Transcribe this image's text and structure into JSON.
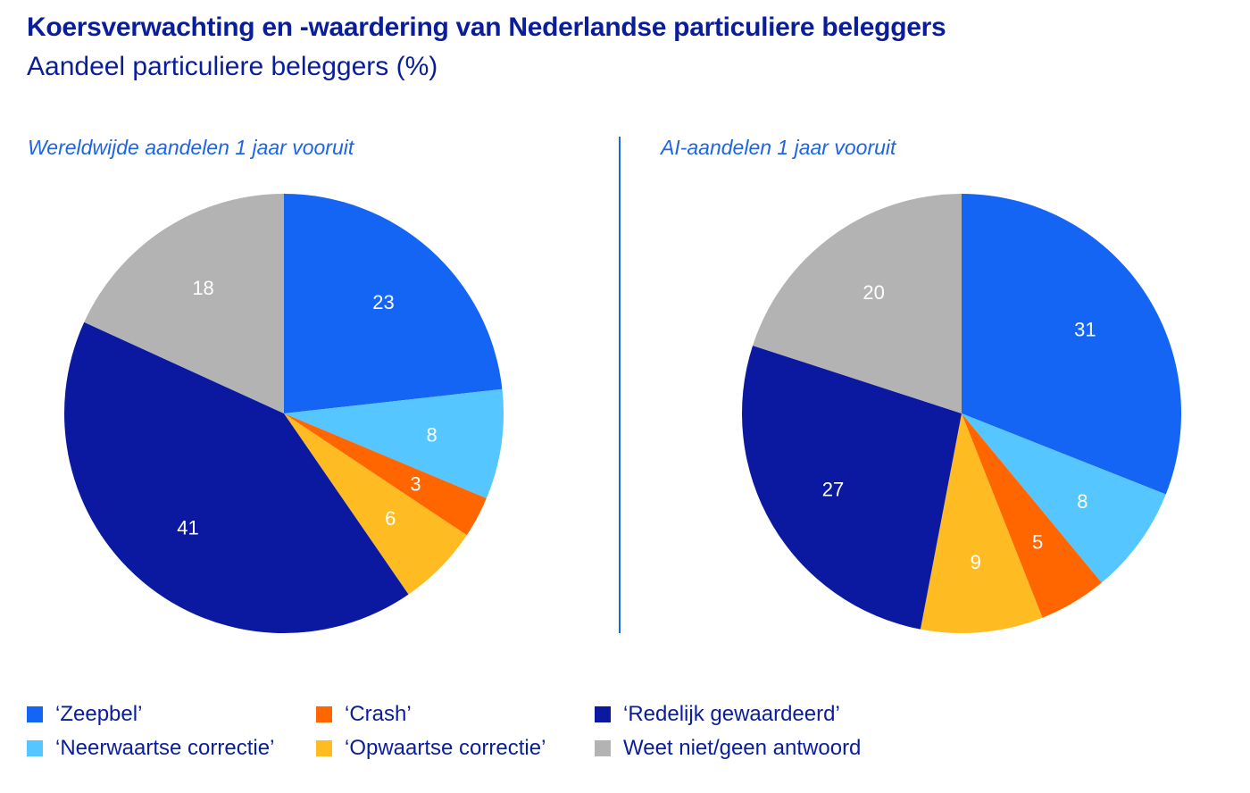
{
  "title": "Koersverwachting en -waardering van Nederlandse particuliere beleggers",
  "subtitle": "Aandeel particuliere beleggers (%)",
  "legend": [
    {
      "label": "‘Zeepbel’",
      "color": "#1565f5"
    },
    {
      "label": "‘Crash’",
      "color": "#ff6600"
    },
    {
      "label": "‘Redelijk gewaardeerd’",
      "color": "#0a19a0"
    },
    {
      "label": "‘Neerwaartse correctie’",
      "color": "#55c6ff"
    },
    {
      "label": "‘Opwaartse correctie’",
      "color": "#ffbb22"
    },
    {
      "label": "Weet niet/geen antwoord",
      "color": "#b3b3b3"
    }
  ],
  "chart_data": [
    {
      "type": "pie",
      "title": "Wereldwijde aandelen 1 jaar vooruit",
      "categories": [
        "‘Zeepbel’",
        "‘Neerwaartse correctie’",
        "‘Crash’",
        "‘Opwaartse correctie’",
        "‘Redelijk gewaardeerd’",
        "Weet niet/geen antwoord"
      ],
      "values": [
        23,
        8,
        3,
        6,
        41,
        18
      ],
      "labels": [
        "23",
        "8",
        "3",
        "6",
        "41",
        "18"
      ],
      "colors": [
        "#1565f5",
        "#55c6ff",
        "#ff6600",
        "#ffbb22",
        "#0a19a0",
        "#b3b3b3"
      ]
    },
    {
      "type": "pie",
      "title": "AI-aandelen 1 jaar vooruit",
      "categories": [
        "‘Zeepbel’",
        "‘Neerwaartse correctie’",
        "‘Crash’",
        "‘Opwaartse correctie’",
        "‘Redelijk gewaardeerd’",
        "Weet niet/geen antwoord"
      ],
      "values": [
        31,
        8,
        5,
        9,
        27,
        20
      ],
      "labels": [
        "31",
        "8",
        "5",
        "9",
        "27",
        "20"
      ],
      "colors": [
        "#1565f5",
        "#55c6ff",
        "#ff6600",
        "#ffbb22",
        "#0a19a0",
        "#b3b3b3"
      ]
    }
  ]
}
